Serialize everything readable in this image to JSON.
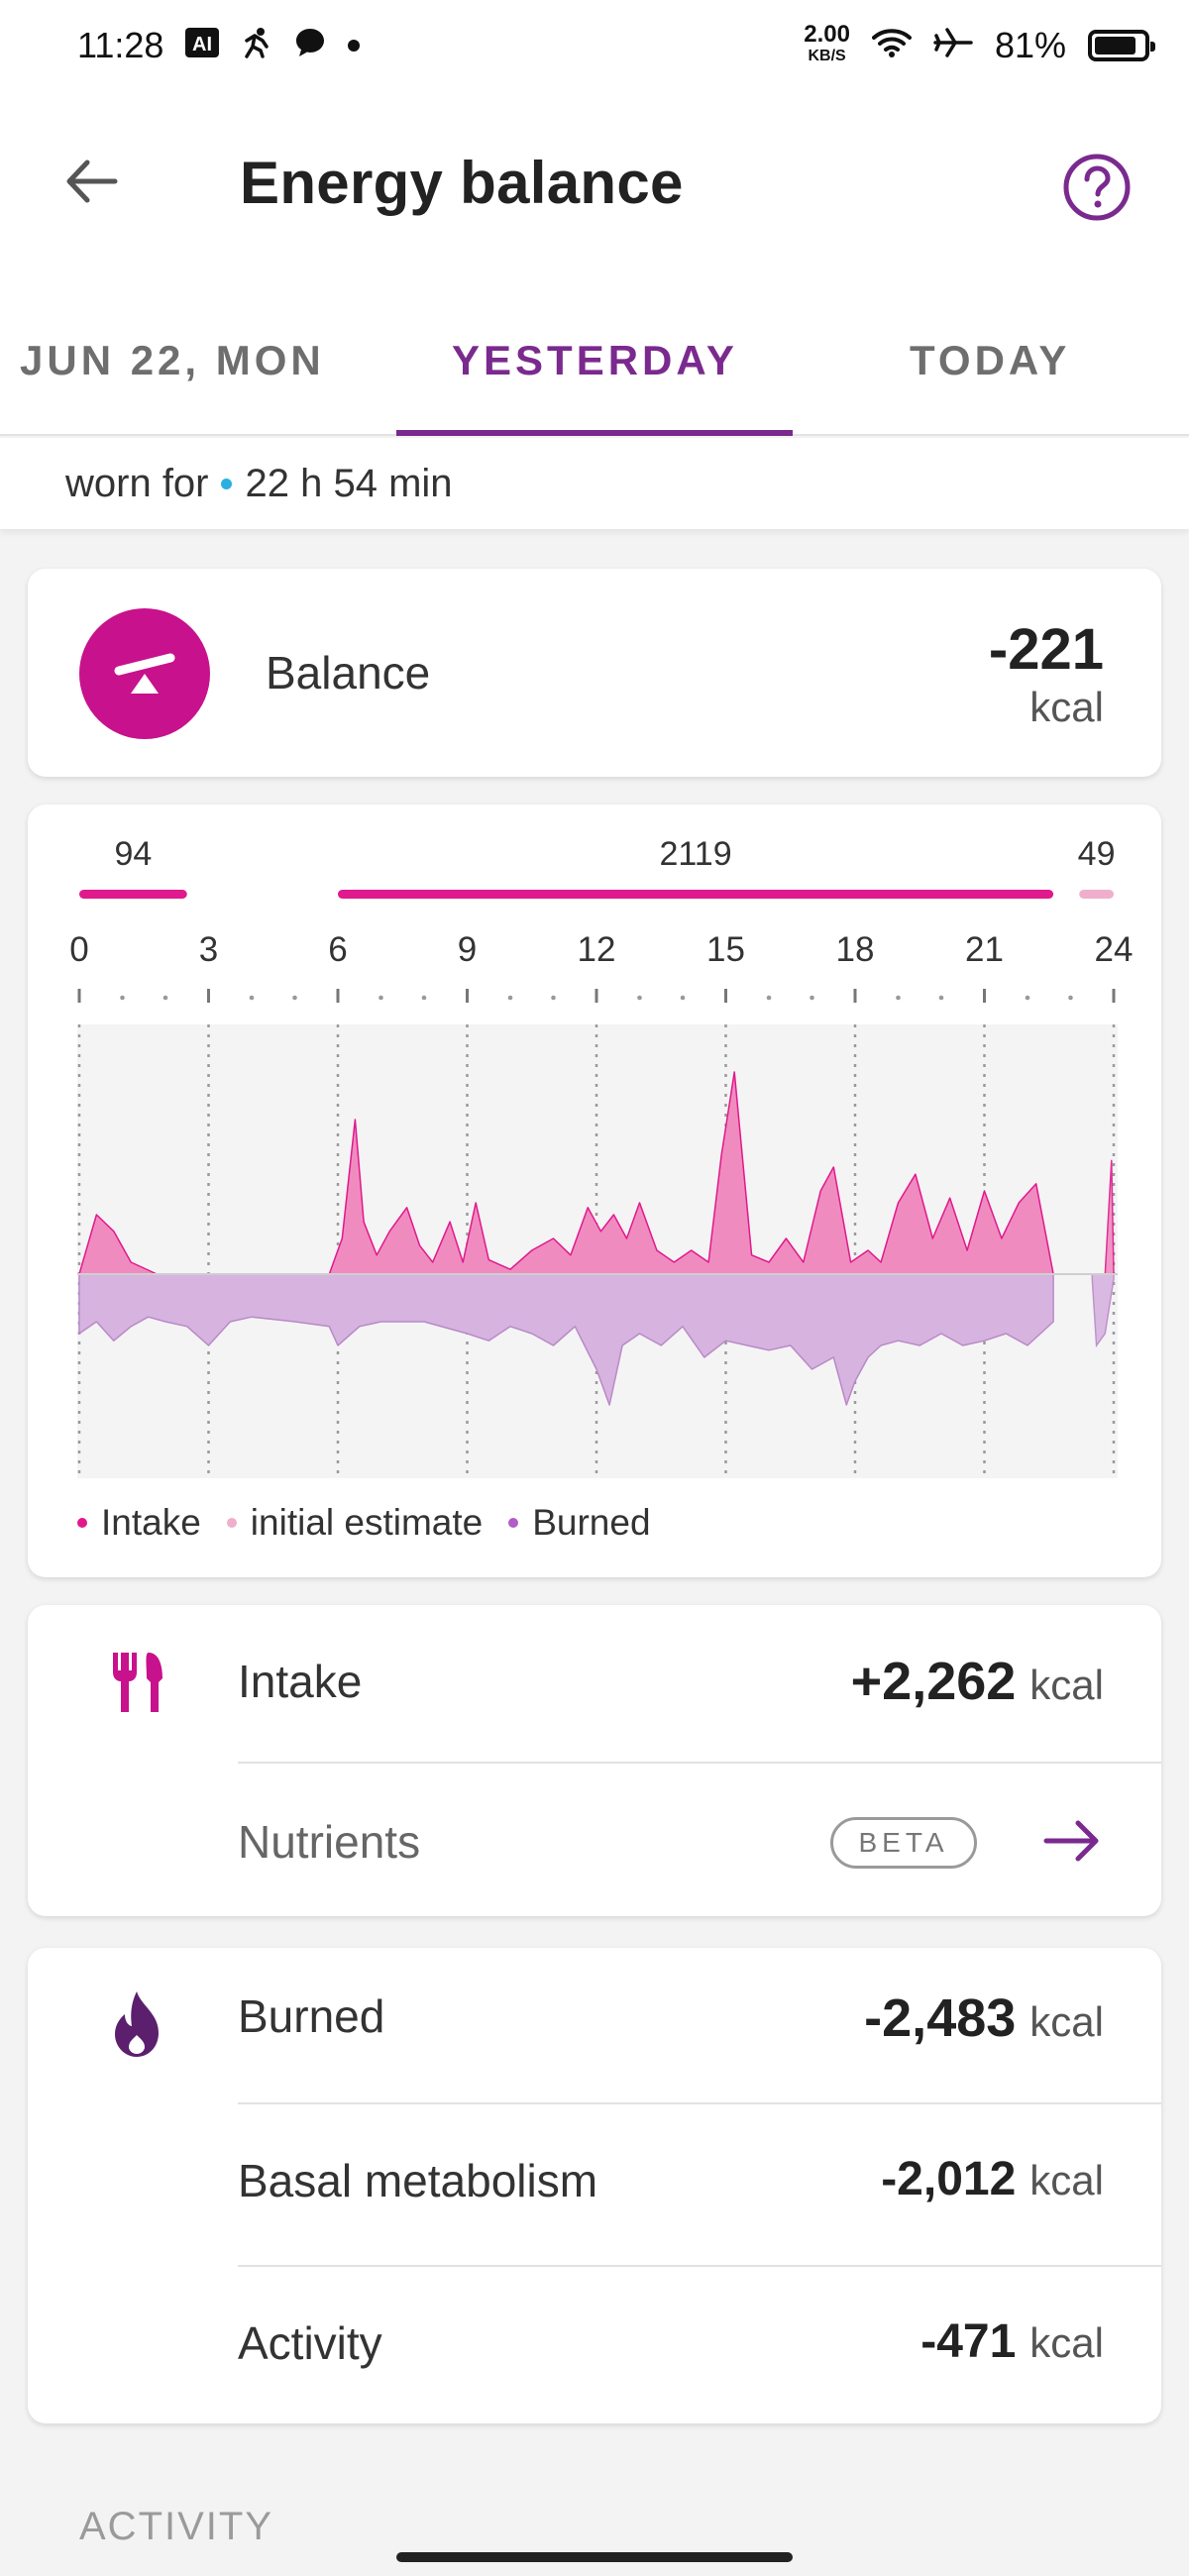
{
  "status_bar": {
    "time": "11:28",
    "app_icons": [
      "ai-icon",
      "run-icon",
      "chat-icon"
    ],
    "net_speed": "2.00",
    "net_unit": "KB/S",
    "battery_text": "81%",
    "battery_level": 0.81
  },
  "header": {
    "title": "Energy balance"
  },
  "tabs": [
    {
      "label": "JUN 22, MON"
    },
    {
      "label": "YESTERDAY",
      "selected": true
    },
    {
      "label": "TODAY"
    }
  ],
  "worn": {
    "prefix": "worn for",
    "duration": "22 h 54 min"
  },
  "balance": {
    "label": "Balance",
    "value": "-221",
    "unit": "kcal"
  },
  "chart_data": {
    "type": "area",
    "segments": [
      {
        "label": "94",
        "start": 0,
        "end": 2.5,
        "color": "#e0198c"
      },
      {
        "label": "2119",
        "start": 6,
        "end": 22.6,
        "color": "#e0198c"
      },
      {
        "label": "49",
        "start": 23.2,
        "end": 24,
        "color": "#f0aecd"
      }
    ],
    "x_ticks": [
      "0",
      "3",
      "6",
      "9",
      "12",
      "15",
      "18",
      "21",
      "24"
    ],
    "xlim": [
      0,
      24
    ],
    "grid": true,
    "legend_position": "bottom-left",
    "series": [
      {
        "name": "Intake",
        "color": "#f08bc0",
        "x": [
          0,
          0.4,
          0.8,
          1.2,
          1.8,
          2.5,
          3,
          5.8,
          6.1,
          6.4,
          6.6,
          6.9,
          7.2,
          7.6,
          7.9,
          8.2,
          8.6,
          8.9,
          9.2,
          9.5,
          10,
          10.5,
          11,
          11.4,
          11.8,
          12.1,
          12.4,
          12.7,
          13,
          13.4,
          13.8,
          14.2,
          14.6,
          14.9,
          15.2,
          15.6,
          16,
          16.4,
          16.8,
          17.2,
          17.5,
          17.9,
          18.3,
          18.6,
          19,
          19.4,
          19.8,
          20.2,
          20.6,
          21,
          21.4,
          21.8,
          22.2,
          22.6
        ],
        "values": [
          0,
          0.25,
          0.18,
          0.05,
          0,
          0,
          0,
          0,
          0.15,
          0.65,
          0.22,
          0.08,
          0.18,
          0.28,
          0.12,
          0.05,
          0.22,
          0.05,
          0.3,
          0.06,
          0.02,
          0.1,
          0.15,
          0.08,
          0.28,
          0.18,
          0.25,
          0.15,
          0.3,
          0.1,
          0.05,
          0.1,
          0.05,
          0.5,
          0.85,
          0.08,
          0.05,
          0.15,
          0.05,
          0.35,
          0.45,
          0.05,
          0.1,
          0.05,
          0.3,
          0.42,
          0.15,
          0.32,
          0.1,
          0.35,
          0.15,
          0.3,
          0.38,
          0
        ],
        "extra_x": [
          23.8,
          23.95,
          24
        ],
        "extra_values": [
          0,
          0.48,
          0
        ]
      },
      {
        "name": "Burned",
        "color": "#d7b3e0",
        "x": [
          0,
          0.4,
          0.8,
          1.2,
          1.6,
          2,
          2.5,
          3,
          3.5,
          4,
          5,
          5.8,
          6,
          6.5,
          7,
          8,
          9,
          9.5,
          10,
          10.5,
          11,
          11.5,
          12,
          12.3,
          12.6,
          13,
          13.5,
          14,
          14.5,
          15,
          15.5,
          16,
          16.5,
          17,
          17.5,
          17.8,
          18,
          18.3,
          18.6,
          19,
          19.5,
          20,
          20.5,
          21,
          21.5,
          22,
          22.6
        ],
        "values": [
          -0.25,
          -0.2,
          -0.28,
          -0.22,
          -0.18,
          -0.2,
          -0.22,
          -0.3,
          -0.2,
          -0.18,
          -0.2,
          -0.22,
          -0.3,
          -0.22,
          -0.2,
          -0.2,
          -0.25,
          -0.28,
          -0.22,
          -0.25,
          -0.3,
          -0.22,
          -0.4,
          -0.55,
          -0.3,
          -0.25,
          -0.3,
          -0.22,
          -0.35,
          -0.28,
          -0.3,
          -0.32,
          -0.3,
          -0.4,
          -0.35,
          -0.55,
          -0.45,
          -0.35,
          -0.3,
          -0.28,
          -0.3,
          -0.25,
          -0.3,
          -0.28,
          -0.25,
          -0.3,
          -0.2
        ],
        "extra_x": [
          23.5,
          23.6,
          23.8,
          24
        ],
        "extra_values": [
          -0.02,
          -0.3,
          -0.25,
          -0.02
        ]
      }
    ],
    "legend": [
      {
        "label": "Intake",
        "color": "#e0198c"
      },
      {
        "label": "initial estimate",
        "color": "#f0aecd"
      },
      {
        "label": "Burned",
        "color": "#b15cc7"
      }
    ]
  },
  "intake": {
    "label": "Intake",
    "value": "+2,262",
    "unit": "kcal",
    "nutrients_label": "Nutrients",
    "beta_label": "BETA"
  },
  "burned": {
    "label": "Burned",
    "value": "-2,483",
    "unit": "kcal",
    "basal_label": "Basal metabolism",
    "basal_value": "-2,012",
    "basal_unit": "kcal",
    "activity_label": "Activity",
    "activity_value": "-471",
    "activity_unit": "kcal"
  },
  "section": {
    "title": "ACTIVITY"
  },
  "colors": {
    "accent": "#7a2a8e",
    "intake": "#c8118c",
    "burned_icon": "#5b1f6e"
  }
}
